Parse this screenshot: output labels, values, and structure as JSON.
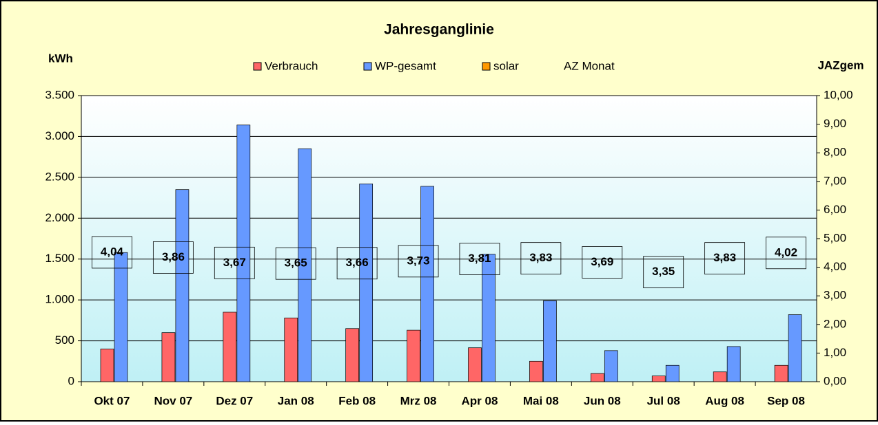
{
  "chart_data": {
    "type": "bar",
    "title": "Jahresganglinie",
    "y_label": "kWh",
    "y2_label": "JAZgem",
    "categories": [
      "Okt 07",
      "Nov 07",
      "Dez 07",
      "Jan 08",
      "Feb 08",
      "Mrz 08",
      "Apr 08",
      "Mai 08",
      "Jun 08",
      "Jul 08",
      "Aug 08",
      "Sep 08"
    ],
    "series": [
      {
        "name": "Verbrauch",
        "color": "#ff6666",
        "values": [
          400,
          600,
          850,
          780,
          650,
          630,
          415,
          250,
          100,
          70,
          120,
          200
        ]
      },
      {
        "name": "WP-gesamt",
        "color": "#6699ff",
        "values": [
          1580,
          2350,
          3140,
          2850,
          2420,
          2390,
          1560,
          990,
          380,
          200,
          430,
          820
        ]
      },
      {
        "name": "solar",
        "color": "#ff9900",
        "values": [
          0,
          0,
          0,
          0,
          0,
          0,
          0,
          0,
          0,
          0,
          0,
          0
        ]
      },
      {
        "name": "AZ Monat",
        "axis": "y2",
        "values": [
          4.04,
          3.86,
          3.67,
          3.65,
          3.66,
          3.73,
          3.81,
          3.83,
          3.69,
          3.35,
          3.83,
          4.02
        ],
        "value_labels": [
          "4,04",
          "3,86",
          "3,67",
          "3,65",
          "3,66",
          "3,73",
          "3,81",
          "3,83",
          "3,69",
          "3,35",
          "3,83",
          "4,02"
        ]
      }
    ],
    "ylim": [
      0,
      3500
    ],
    "yticks": [
      0,
      500,
      {
        "value": 1000,
        "label": "1.000"
      },
      {
        "value": 1500,
        "label": "1.500"
      },
      {
        "value": 2000,
        "label": "2.000"
      },
      {
        "value": 2500,
        "label": "2.500"
      },
      {
        "value": 3000,
        "label": "3.000"
      },
      {
        "value": 3500,
        "label": "3.500"
      }
    ],
    "y2lim": [
      0,
      10
    ],
    "y2ticks": [
      {
        "value": 0,
        "label": "0,00"
      },
      {
        "value": 1,
        "label": "1,00"
      },
      {
        "value": 2,
        "label": "2,00"
      },
      {
        "value": 3,
        "label": "3,00"
      },
      {
        "value": 4,
        "label": "4,00"
      },
      {
        "value": 5,
        "label": "5,00"
      },
      {
        "value": 6,
        "label": "6,00"
      },
      {
        "value": 7,
        "label": "7,00"
      },
      {
        "value": 8,
        "label": "8,00"
      },
      {
        "value": 9,
        "label": "9,00"
      },
      {
        "value": 10,
        "label": "10,00"
      }
    ],
    "grid": true
  }
}
